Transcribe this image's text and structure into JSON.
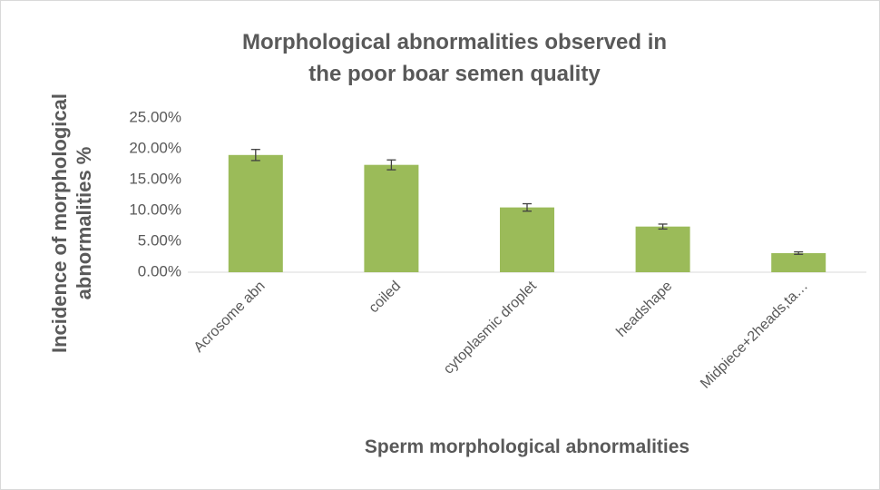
{
  "chart_data": {
    "type": "bar",
    "title": "Morphological abnormalities observed in the poor boar semen quality",
    "x_label": "Sperm morphological abnormalities",
    "y_label": "Incidence of morphological abnormalities %",
    "categories": [
      "Acrosome abn",
      "coiled",
      "cytoplasmic droplet",
      "headshape",
      "Midpiece+2heads,ta…"
    ],
    "values": [
      19.0,
      17.4,
      10.5,
      7.4,
      3.1
    ],
    "errors": [
      0.9,
      0.8,
      0.6,
      0.4,
      0.2
    ],
    "color": "#9bbb59",
    "ylim": [
      0,
      25
    ],
    "yticks": [
      {
        "value": 0,
        "label": "0.00%"
      },
      {
        "value": 5,
        "label": "5.00%"
      },
      {
        "value": 10,
        "label": "10.00%"
      },
      {
        "value": 15,
        "label": "15.00%"
      },
      {
        "value": 20,
        "label": "20.00%"
      },
      {
        "value": 25,
        "label": "25.00%"
      }
    ],
    "grid": false
  }
}
